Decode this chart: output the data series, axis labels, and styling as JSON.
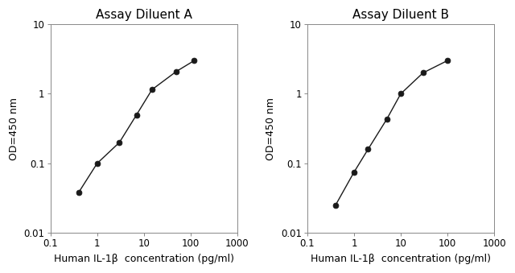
{
  "title_A": "Assay Diluent A",
  "title_B": "Assay Diluent B",
  "xlabel": "Human IL-1β  concentration (pg/ml)",
  "ylabel": "OD=450 nm",
  "xlim": [
    0.1,
    1000
  ],
  "ylim": [
    0.01,
    10
  ],
  "x_A": [
    0.4,
    1.0,
    3.0,
    7.0,
    15.0,
    50.0,
    120.0
  ],
  "y_A": [
    0.038,
    0.1,
    0.2,
    0.5,
    1.15,
    2.1,
    3.0
  ],
  "x_B": [
    0.4,
    1.0,
    2.0,
    5.0,
    10.0,
    30.0,
    100.0
  ],
  "y_B": [
    0.025,
    0.075,
    0.16,
    0.43,
    1.0,
    2.0,
    3.0
  ],
  "line_color": "#1a1a1a",
  "marker_color": "#1a1a1a",
  "bg_color": "#ffffff",
  "title_fontsize": 11,
  "label_fontsize": 9,
  "tick_fontsize": 8.5,
  "x_ticks": [
    0.1,
    1,
    10,
    100,
    1000
  ],
  "x_tick_labels": [
    "0.1",
    "1",
    "10",
    "100",
    "1000"
  ],
  "y_ticks": [
    0.01,
    0.1,
    1,
    10
  ],
  "y_tick_labels": [
    "0.01",
    "0.1",
    "1",
    "10"
  ]
}
